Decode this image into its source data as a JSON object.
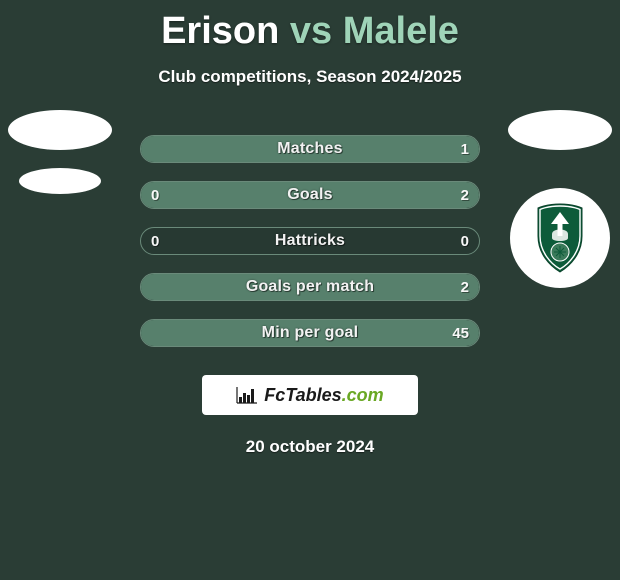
{
  "background_color": "#2a3d35",
  "title": {
    "player1": "Erison",
    "vs": "vs",
    "player2": "Malele",
    "p1_color": "#ffffff",
    "accent_color": "#9fd4b8",
    "fontsize": 38
  },
  "subtitle": "Club competitions, Season 2024/2025",
  "stats": {
    "bar_border_color": "#6a8a7a",
    "fill_left_color": "#3f5a4d",
    "fill_right_color": "#57806c",
    "label_fontsize": 16,
    "value_fontsize": 15,
    "rows": [
      {
        "label": "Matches",
        "left": "",
        "right": "1",
        "left_pct": 0,
        "right_pct": 100
      },
      {
        "label": "Goals",
        "left": "0",
        "right": "2",
        "left_pct": 0,
        "right_pct": 100
      },
      {
        "label": "Hattricks",
        "left": "0",
        "right": "0",
        "left_pct": 0,
        "right_pct": 0
      },
      {
        "label": "Goals per match",
        "left": "",
        "right": "2",
        "left_pct": 0,
        "right_pct": 100
      },
      {
        "label": "Min per goal",
        "left": "",
        "right": "45",
        "left_pct": 0,
        "right_pct": 100
      }
    ]
  },
  "brand": {
    "prefix": "Fc",
    "middle": "Tables",
    "suffix": ".com",
    "bg": "#ffffff",
    "text_color": "#1a1a1a",
    "accent_color": "#6aa824"
  },
  "date": "20 october 2024",
  "club_badge": {
    "shield_color": "#0d5b3a",
    "trim_color": "#ffffff",
    "emblem_color": "#ffffff"
  }
}
